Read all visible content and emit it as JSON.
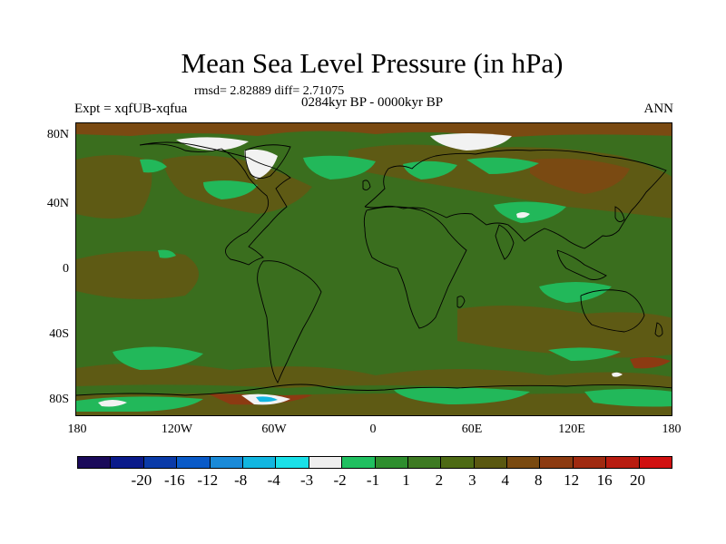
{
  "title": "Mean Sea Level Pressure (in hPa)",
  "stats": "rmsd= 2.82889 diff= 2.71075",
  "subtitle": "0284kyr BP - 0000kyr BP",
  "experiment": "Expt = xqfUB-xqfua",
  "season": "ANN",
  "lat_labels": [
    "80N",
    "40N",
    "0",
    "40S",
    "80S"
  ],
  "lon_labels": [
    "180",
    "120W",
    "60W",
    "0",
    "60E",
    "120E",
    "180"
  ],
  "colorbar": {
    "colors": [
      "#1a0a5a",
      "#0a1a8a",
      "#0a3aa8",
      "#0a5ac8",
      "#1a8ad8",
      "#12b6e0",
      "#1ae0e8",
      "#eeeeee",
      "#20c060",
      "#2e8e2e",
      "#3d7a22",
      "#4d6a14",
      "#5a5810",
      "#7a4a10",
      "#8c3a10",
      "#a02a10",
      "#b81c10",
      "#d01010"
    ],
    "labels": [
      "-20",
      "-16",
      "-12",
      "-8",
      "-4",
      "-3",
      "-2",
      "-1",
      "1",
      "2",
      "3",
      "4",
      "8",
      "12",
      "16",
      "20"
    ]
  },
  "map_colors": {
    "base": "#3a6e1e",
    "light_green": "#22b85a",
    "brown": "#5e5a14",
    "dark_brown": "#7a4a12",
    "red_brown": "#8c3a12",
    "white": "#f2f2f2",
    "cyan": "#12b6e0",
    "coast": "#000000"
  }
}
